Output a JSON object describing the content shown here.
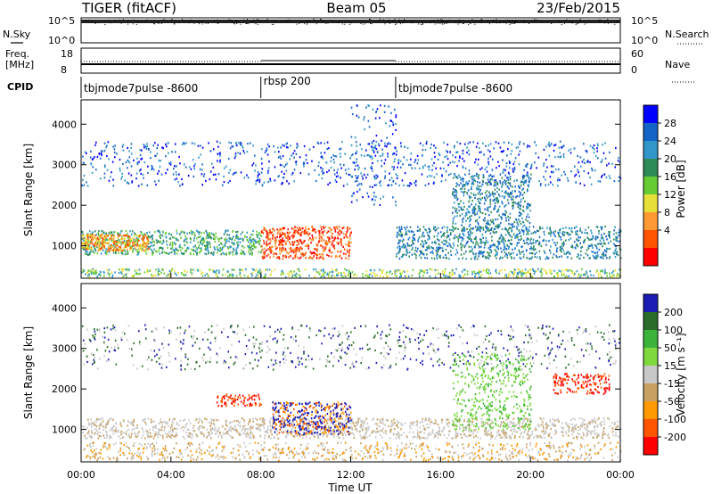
{
  "header": {
    "radar": "TIGER (fitACF)",
    "beam": "Beam 05",
    "date": "23/Feb/2015"
  },
  "colors": {
    "power": [
      "#0000ff",
      "#1464c8",
      "#3296c8",
      "#2e8b57",
      "#66cc33",
      "#e8e03a",
      "#ff9933",
      "#ff5500",
      "#ff0000"
    ],
    "velocity": [
      "#1c1cb4",
      "#2a6d2a",
      "#3cb43c",
      "#7ed83e",
      "#c8c8c8",
      "#c8a060",
      "#ff9900",
      "#ff5500",
      "#ff0000"
    ]
  },
  "chart_data": [
    {
      "type": "line",
      "panel": "noise",
      "ylabel_left": "N.Sky",
      "ylabel_right": "N.Search",
      "yticks_left": [
        "10^5",
        "10^0"
      ],
      "yticks_right": [
        "10^5",
        "10^0"
      ]
    },
    {
      "type": "line",
      "panel": "frequency",
      "ylabel_left": "Freq.",
      "ylabel_left_unit": "[MHz]",
      "ylabel_right": "Nave",
      "yticks_left": [
        "18",
        "8"
      ],
      "yticks_right": [
        "60",
        "0"
      ],
      "ylim_left": [
        8,
        18
      ],
      "ylim_right": [
        0,
        60
      ]
    },
    {
      "type": "table",
      "panel": "cpid",
      "label": "CPID",
      "segments": [
        {
          "start_hour": 0,
          "end_hour": 8,
          "name": "tbjmode7pulse -8600"
        },
        {
          "start_hour": 8,
          "end_hour": 14,
          "name": "rbsp 200"
        },
        {
          "start_hour": 14,
          "end_hour": 24,
          "name": "tbjmode7pulse -8600"
        }
      ]
    },
    {
      "type": "heatmap",
      "panel": "power",
      "xlim": [
        0,
        24
      ],
      "ylim": [
        200,
        4600
      ],
      "ylabel": "Slant Range [km]",
      "yticks": [
        1000,
        2000,
        3000,
        4000
      ],
      "colorbar_label": "Power [dB]",
      "colorbar_ticks": [
        "28",
        "24",
        "20",
        "16",
        "12",
        "8",
        "4"
      ]
    },
    {
      "type": "heatmap",
      "panel": "velocity",
      "xlim": [
        0,
        24
      ],
      "ylim": [
        200,
        4600
      ],
      "ylabel": "Slant Range [km]",
      "yticks": [
        1000,
        2000,
        3000,
        4000
      ],
      "colorbar_label": "Velocity [m s⁻¹]",
      "colorbar_ticks": [
        "200",
        "100",
        "50",
        "15",
        "-15",
        "-50",
        "-100",
        "-200"
      ]
    }
  ],
  "xaxis": {
    "label": "Time UT",
    "ticks": [
      "00:00",
      "04:00",
      "08:00",
      "12:00",
      "16:00",
      "20:00",
      "00:00"
    ]
  }
}
